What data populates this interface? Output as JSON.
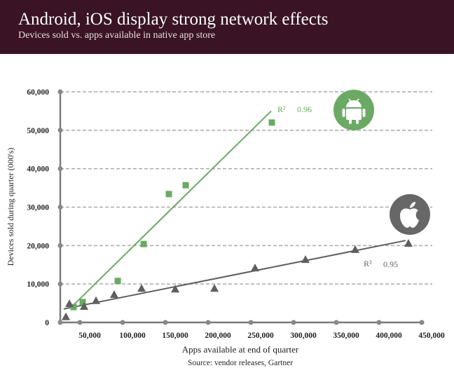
{
  "header": {
    "title": "Android, iOS display strong network effects",
    "subtitle": "Devices sold vs. apps available in native app store"
  },
  "chart_data": {
    "type": "scatter",
    "title": "Android, iOS display strong network effects",
    "subtitle": "Devices sold vs. apps available in native app store",
    "xlabel": "Apps available at end of quarter",
    "ylabel": "Devices sold during quarter (000's)",
    "source": "Source: vendor releases, Gartner",
    "xlim": [
      27000,
      450000
    ],
    "ylim": [
      0,
      60000
    ],
    "xticks": [
      50000,
      100000,
      150000,
      200000,
      250000,
      300000,
      350000,
      400000,
      450000
    ],
    "xtick_labels": [
      "50,000",
      "100,000",
      "150,000",
      "200,000",
      "250,000",
      "300,000",
      "350,000",
      "400,000",
      "450,000"
    ],
    "yticks": [
      0,
      10000,
      20000,
      30000,
      40000,
      50000,
      60000
    ],
    "ytick_labels": [
      "0",
      "10,000",
      "20,000",
      "30,000",
      "40,000",
      "50,000",
      "60,000"
    ],
    "grid": "horizontal-dashed",
    "series": [
      {
        "name": "Android",
        "color": "#6aaa64",
        "marker": "square",
        "x": [
          42600,
          53300,
          94300,
          124600,
          154100,
          173800,
          274600
        ],
        "y": [
          4000,
          5300,
          10800,
          20400,
          33400,
          35700,
          52000
        ],
        "trend": {
          "x": [
            41000,
            273800
          ],
          "y": [
            4200,
            55000
          ]
        },
        "r2_label": "R²",
        "r2": "0.96"
      },
      {
        "name": "iOS",
        "color": "#5f5f5f",
        "marker": "triangle",
        "x": [
          33600,
          37700,
          54900,
          68800,
          90100,
          122100,
          161500,
          207400,
          254900,
          313900,
          372100,
          434400
        ],
        "y": [
          1500,
          4900,
          4200,
          5700,
          7300,
          8900,
          8700,
          8900,
          14200,
          16400,
          19000,
          20600
        ],
        "trend": {
          "x": [
            31000,
            431000
          ],
          "y": [
            3500,
            21300
          ]
        },
        "r2_label": "R²",
        "r2": "0.95"
      }
    ]
  }
}
